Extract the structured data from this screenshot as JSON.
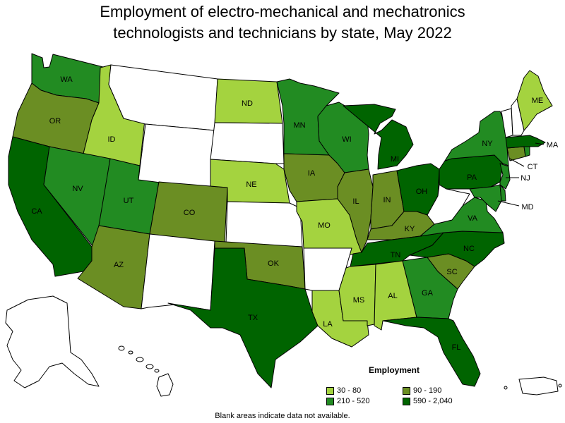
{
  "title_lines": [
    "Employment of electro-mechanical and mechatronics",
    "technologists and technicians by state, May 2022"
  ],
  "colors": {
    "no_data": "#ffffff",
    "c30_80": "#a4d33f",
    "c90_190": "#6b8e23",
    "c210_520": "#228b22",
    "c590_2040": "#006400"
  },
  "legend": {
    "title": "Employment",
    "items": [
      {
        "label": "30 - 80",
        "color_key": "c30_80"
      },
      {
        "label": "90 - 190",
        "color_key": "c90_190"
      },
      {
        "label": "210 - 520",
        "color_key": "c210_520"
      },
      {
        "label": "590 - 2,040",
        "color_key": "c590_2040"
      }
    ]
  },
  "note": "Blank areas indicate data not available.",
  "states": [
    {
      "abbr": "WA",
      "bin": "c210_520"
    },
    {
      "abbr": "OR",
      "bin": "c90_190"
    },
    {
      "abbr": "CA",
      "bin": "c590_2040"
    },
    {
      "abbr": "ID",
      "bin": "c30_80"
    },
    {
      "abbr": "NV",
      "bin": "c210_520"
    },
    {
      "abbr": "UT",
      "bin": "c210_520"
    },
    {
      "abbr": "AZ",
      "bin": "c90_190"
    },
    {
      "abbr": "MT",
      "bin": "no_data"
    },
    {
      "abbr": "WY",
      "bin": "no_data"
    },
    {
      "abbr": "CO",
      "bin": "c90_190"
    },
    {
      "abbr": "NM",
      "bin": "no_data"
    },
    {
      "abbr": "ND",
      "bin": "c30_80"
    },
    {
      "abbr": "SD",
      "bin": "no_data"
    },
    {
      "abbr": "NE",
      "bin": "c30_80"
    },
    {
      "abbr": "KS",
      "bin": "no_data"
    },
    {
      "abbr": "OK",
      "bin": "c90_190"
    },
    {
      "abbr": "TX",
      "bin": "c590_2040"
    },
    {
      "abbr": "MN",
      "bin": "c210_520"
    },
    {
      "abbr": "IA",
      "bin": "c90_190"
    },
    {
      "abbr": "MO",
      "bin": "c30_80"
    },
    {
      "abbr": "AR",
      "bin": "no_data"
    },
    {
      "abbr": "LA",
      "bin": "c30_80"
    },
    {
      "abbr": "WI",
      "bin": "c210_520"
    },
    {
      "abbr": "IL",
      "bin": "c90_190"
    },
    {
      "abbr": "MI",
      "bin": "c590_2040"
    },
    {
      "abbr": "IN",
      "bin": "c90_190"
    },
    {
      "abbr": "OH",
      "bin": "c590_2040"
    },
    {
      "abbr": "KY",
      "bin": "c90_190"
    },
    {
      "abbr": "TN",
      "bin": "c590_2040"
    },
    {
      "abbr": "MS",
      "bin": "c30_80"
    },
    {
      "abbr": "AL",
      "bin": "c30_80"
    },
    {
      "abbr": "GA",
      "bin": "c210_520"
    },
    {
      "abbr": "FL",
      "bin": "c590_2040"
    },
    {
      "abbr": "SC",
      "bin": "c90_190"
    },
    {
      "abbr": "NC",
      "bin": "c590_2040"
    },
    {
      "abbr": "VA",
      "bin": "c210_520"
    },
    {
      "abbr": "WV",
      "bin": "no_data"
    },
    {
      "abbr": "PA",
      "bin": "c590_2040"
    },
    {
      "abbr": "NY",
      "bin": "c210_520"
    },
    {
      "abbr": "MD",
      "bin": "c210_520"
    },
    {
      "abbr": "DE",
      "bin": "c210_520"
    },
    {
      "abbr": "NJ",
      "bin": "c210_520"
    },
    {
      "abbr": "CT",
      "bin": "c90_190"
    },
    {
      "abbr": "RI",
      "bin": "c210_520"
    },
    {
      "abbr": "MA",
      "bin": "c590_2040"
    },
    {
      "abbr": "VT",
      "bin": "no_data"
    },
    {
      "abbr": "NH",
      "bin": "no_data"
    },
    {
      "abbr": "ME",
      "bin": "c30_80"
    },
    {
      "abbr": "AK",
      "bin": "no_data"
    },
    {
      "abbr": "HI",
      "bin": "no_data"
    },
    {
      "abbr": "PR",
      "bin": "no_data"
    }
  ]
}
